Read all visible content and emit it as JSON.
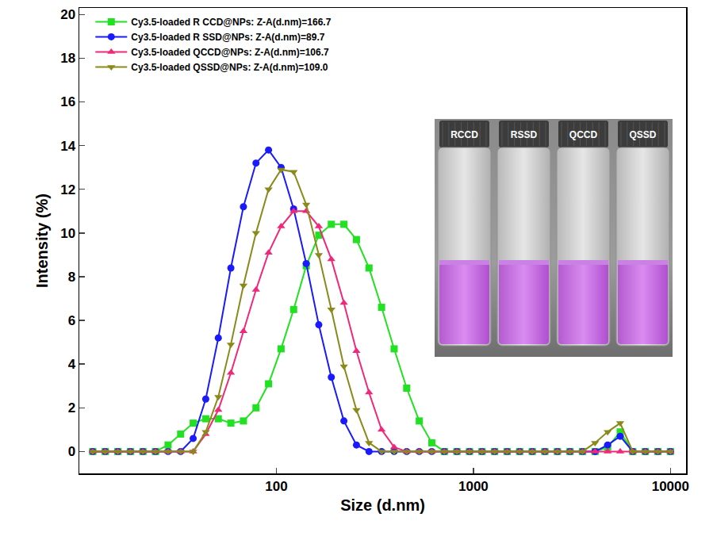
{
  "chart_data": {
    "type": "line",
    "x_label": "Size (d.nm)",
    "y_label": "Intensity (%)",
    "log": "x",
    "grid": false,
    "legend": "top left",
    "xlim": [
      10,
      12000
    ],
    "xticks": [
      100,
      1000,
      10000
    ],
    "ylim": [
      -1,
      20.3
    ],
    "yticks": [
      0,
      2,
      4,
      6,
      8,
      10,
      12,
      14,
      16,
      18,
      20
    ],
    "x": [
      11.7,
      13.54,
      15.69,
      18.17,
      21.04,
      24.36,
      28.21,
      32.67,
      37.84,
      43.82,
      50.75,
      58.77,
      68.06,
      78.82,
      91.28,
      105.7,
      122.4,
      141.8,
      164.2,
      190.1,
      220.2,
      255.0,
      295.3,
      342.0,
      396.1,
      458.7,
      531.2,
      615.1,
      712.4,
      825.0,
      955.4,
      1106,
      1281,
      1484,
      1718,
      1990,
      2305,
      2669,
      3091,
      3580,
      4145,
      4801,
      5560,
      6439,
      7456,
      8635,
      10000
    ],
    "series": [
      {
        "name": "Cy3.5-loaded R CCD@NPs: Z-A(d.nm)=166.7",
        "color": "#22e022",
        "marker": "square",
        "values": [
          0,
          0,
          0,
          0,
          0,
          0,
          0.3,
          0.8,
          1.3,
          1.5,
          1.5,
          1.3,
          1.4,
          2.0,
          3.1,
          4.7,
          6.5,
          8.5,
          9.9,
          10.4,
          10.4,
          9.7,
          8.4,
          6.6,
          4.7,
          2.9,
          1.4,
          0.4,
          0,
          0,
          0,
          0,
          0,
          0,
          0,
          0,
          0,
          0,
          0,
          0,
          0,
          0.2,
          0.9,
          0,
          0,
          0,
          0
        ]
      },
      {
        "name": "Cy3.5-loaded R SSD@NPs: Z-A(d.nm)=89.7",
        "color": "#1a1aff",
        "marker": "circle",
        "values": [
          0,
          0,
          0,
          0,
          0,
          0,
          0,
          0,
          0.6,
          2.4,
          5.2,
          8.4,
          11.2,
          13.2,
          13.8,
          13.0,
          11.1,
          8.6,
          5.8,
          3.4,
          1.4,
          0.3,
          0,
          0,
          0,
          0,
          0,
          0,
          0,
          0,
          0,
          0,
          0,
          0,
          0,
          0,
          0,
          0,
          0,
          0,
          0,
          0.3,
          0.7,
          0,
          0,
          0,
          0
        ]
      },
      {
        "name": "Cy3.5-loaded QCCD@NPs: Z-A(d.nm)=106.7",
        "color": "#f0287a",
        "marker": "triangle-up",
        "values": [
          0,
          0,
          0,
          0,
          0,
          0,
          0,
          0,
          0,
          0.8,
          1.9,
          3.6,
          5.5,
          7.4,
          9.1,
          10.3,
          11.0,
          11.0,
          10.3,
          8.8,
          6.8,
          4.6,
          2.7,
          1.0,
          0.2,
          0,
          0,
          0,
          0,
          0,
          0,
          0,
          0,
          0,
          0,
          0,
          0,
          0,
          0,
          0,
          0,
          0,
          0,
          0,
          0,
          0,
          0
        ]
      },
      {
        "name": "Cy3.5-loaded QSSD@NPs: Z-A(d.nm)=109.0",
        "color": "#8a8a1c",
        "marker": "triangle-down",
        "values": [
          0,
          0,
          0,
          0,
          0,
          0,
          0,
          0,
          0,
          0.9,
          2.5,
          4.9,
          7.6,
          10.0,
          12.0,
          12.9,
          12.8,
          11.3,
          9.0,
          6.5,
          3.9,
          1.9,
          0.4,
          0,
          0,
          0,
          0,
          0,
          0,
          0,
          0,
          0,
          0,
          0,
          0,
          0,
          0,
          0,
          0,
          0,
          0.4,
          0.9,
          1.3,
          0,
          0,
          0,
          0
        ]
      }
    ]
  },
  "inset": {
    "labels": [
      "RCCD",
      "RSSD",
      "QCCD",
      "QSSD"
    ]
  }
}
